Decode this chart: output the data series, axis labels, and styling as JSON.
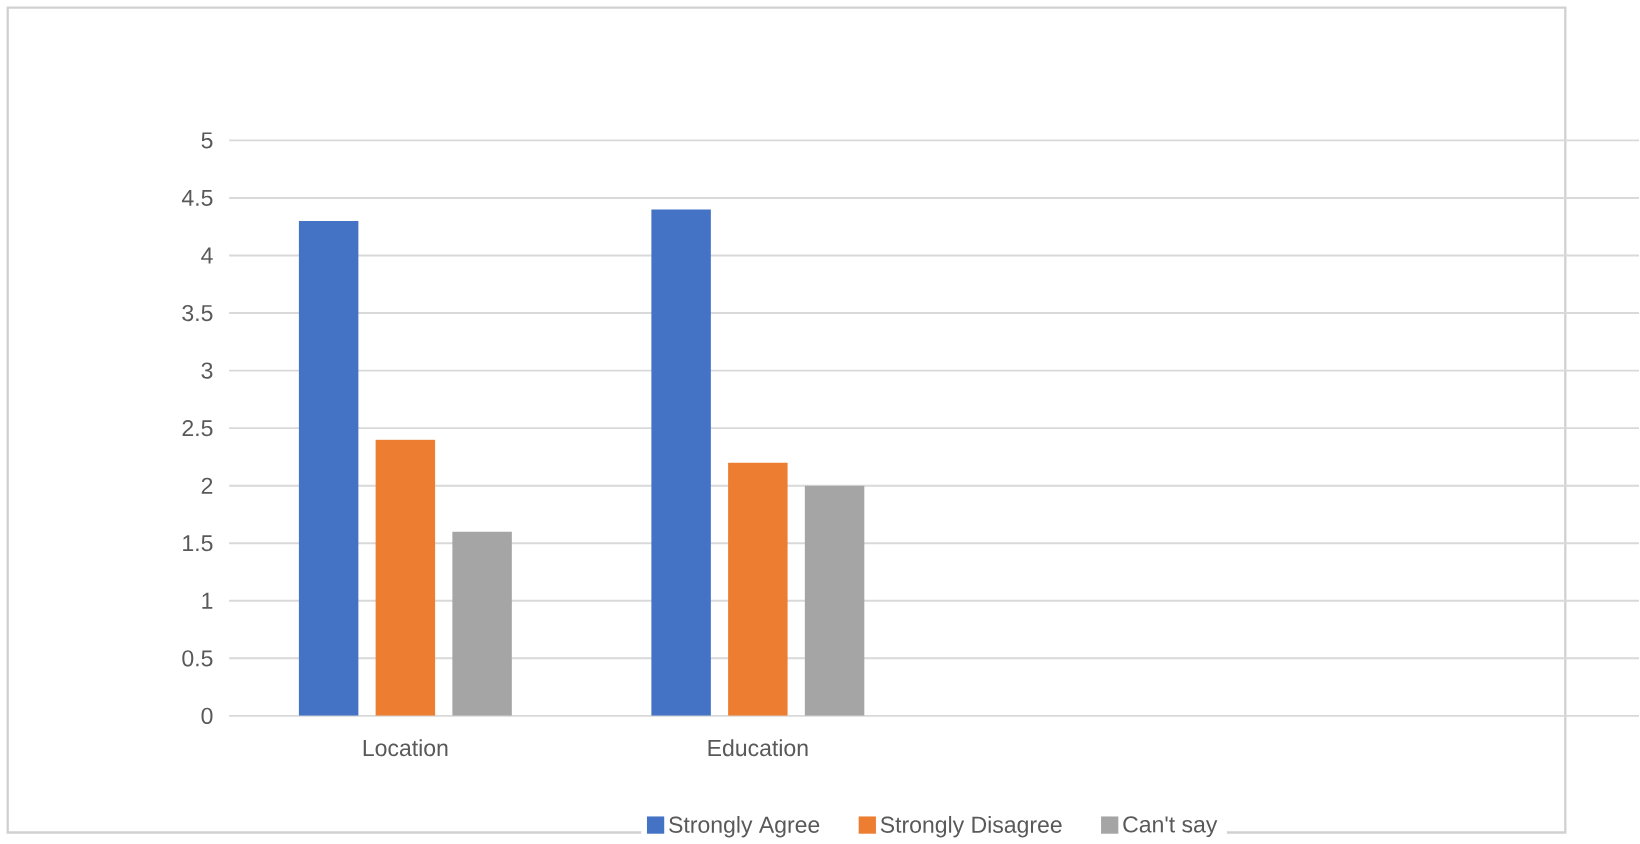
{
  "chart_data": {
    "type": "bar",
    "categories": [
      "Location",
      "Education",
      null,
      null
    ],
    "series": [
      {
        "name": "Strongly Agree",
        "color": "#4472c4",
        "values": [
          4.3,
          4.4,
          null,
          null
        ]
      },
      {
        "name": "Strongly Disagree",
        "color": "#ed7d31",
        "values": [
          2.4,
          2.2,
          null,
          null
        ]
      },
      {
        "name": "Can't say",
        "color": "#a5a5a5",
        "values": [
          1.6,
          2.0,
          null,
          null
        ]
      }
    ],
    "ylim": [
      0,
      5
    ],
    "yticks": [
      0,
      0.5,
      1,
      1.5,
      2,
      2.5,
      3,
      3.5,
      4,
      4.5,
      5
    ],
    "grid": "y",
    "legend": "bottom"
  }
}
